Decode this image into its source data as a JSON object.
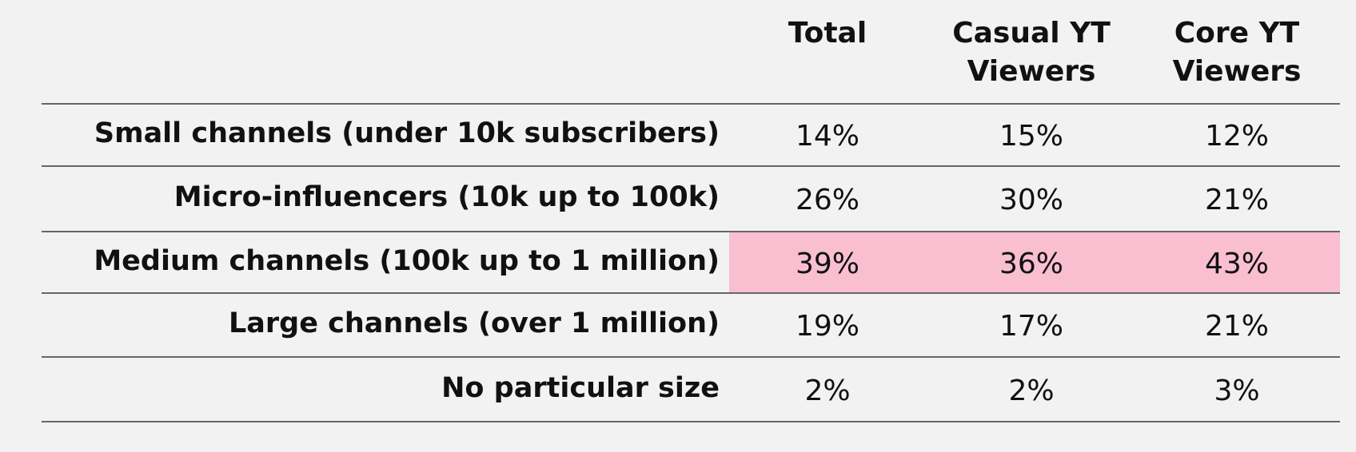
{
  "table": {
    "columns": [
      "Total",
      "Casual YT Viewers",
      "Core YT Viewers"
    ],
    "rows": [
      [
        "Small channels (under 10k subscribers)",
        "14%",
        "15%",
        "12%"
      ],
      [
        "Micro-influencers (10k up to 100k)",
        "26%",
        "30%",
        "21%"
      ],
      [
        "Medium channels (100k up to 1 million)",
        "39%",
        "36%",
        "43%"
      ],
      [
        "Large channels (over 1 million)",
        "19%",
        "17%",
        "21%"
      ],
      [
        "No particular size",
        "2%",
        "2%",
        "3%"
      ]
    ],
    "highlight": {
      "row": 2,
      "color": "#f9bfd1"
    }
  }
}
